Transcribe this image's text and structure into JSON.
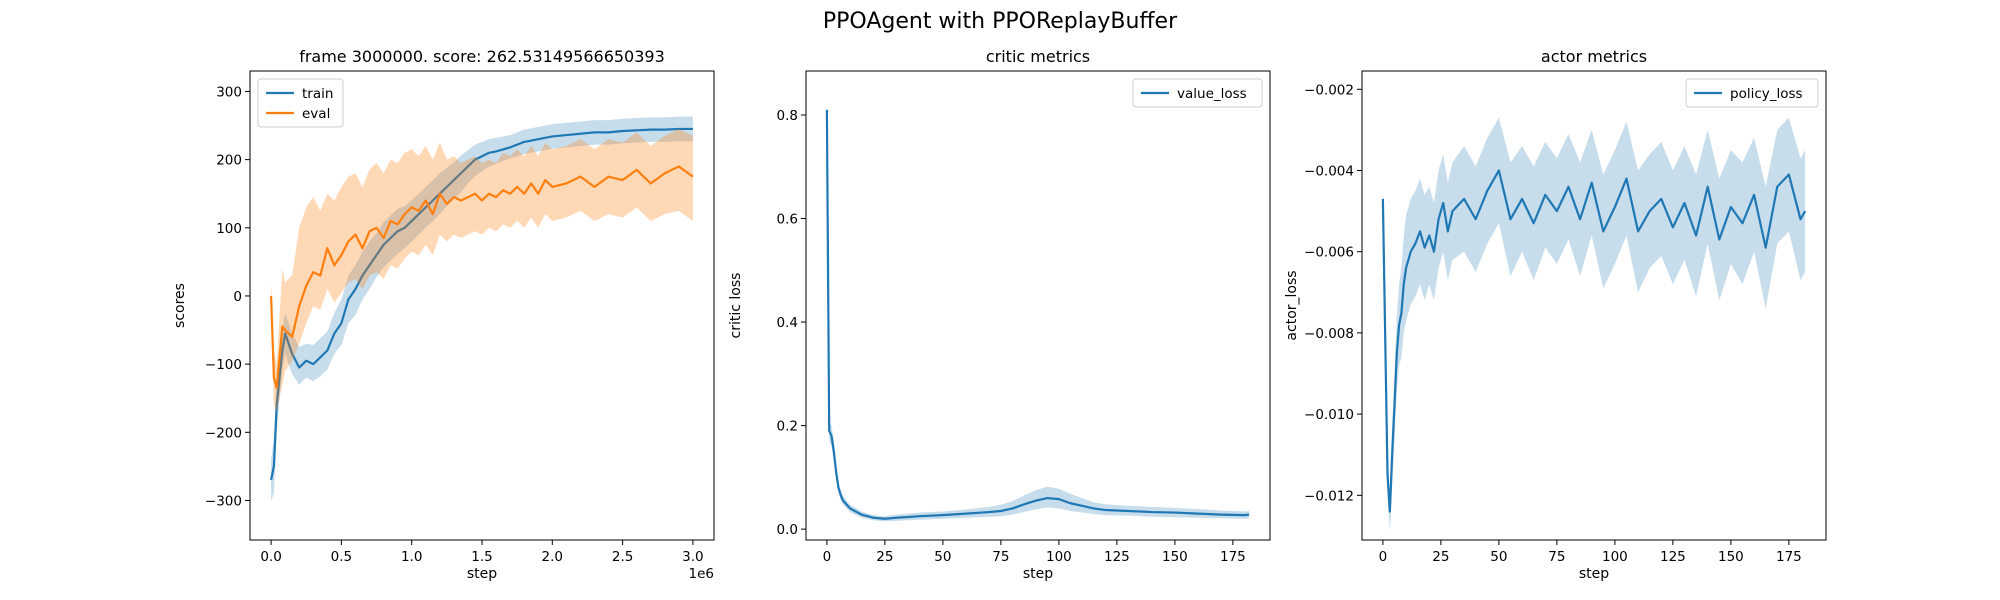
{
  "figure": {
    "suptitle": "PPOAgent with PPOReplayBuffer"
  },
  "chart_data": [
    {
      "type": "line",
      "title": "frame 3000000. score: 262.53149566650393",
      "xlabel": "step",
      "ylabel": "scores",
      "x_offset_text": "1e6",
      "xlim": [
        -150000,
        3150000
      ],
      "ylim": [
        -358,
        330
      ],
      "xticks": [
        0,
        500000,
        1000000,
        1500000,
        2000000,
        2500000,
        3000000
      ],
      "xtick_labels": [
        "0.0",
        "0.5",
        "1.0",
        "1.5",
        "2.0",
        "2.5",
        "3.0"
      ],
      "yticks": [
        -300,
        -200,
        -100,
        0,
        100,
        200,
        300
      ],
      "ytick_labels": [
        "−300",
        "−200",
        "−100",
        "0",
        "100",
        "200",
        "300"
      ],
      "legend": "top-left",
      "series": [
        {
          "name": "train",
          "color": "#1f77b4",
          "band_opacity": 0.25,
          "x": [
            0,
            20000,
            40000,
            60000,
            80000,
            100000,
            150000,
            200000,
            250000,
            300000,
            350000,
            400000,
            450000,
            500000,
            550000,
            600000,
            650000,
            700000,
            750000,
            800000,
            850000,
            900000,
            950000,
            1000000,
            1050000,
            1100000,
            1150000,
            1200000,
            1250000,
            1300000,
            1350000,
            1400000,
            1450000,
            1500000,
            1550000,
            1600000,
            1650000,
            1700000,
            1750000,
            1800000,
            1850000,
            1900000,
            1950000,
            2000000,
            2100000,
            2200000,
            2300000,
            2400000,
            2500000,
            2600000,
            2700000,
            2800000,
            2900000,
            3000000
          ],
          "values": [
            -270,
            -250,
            -160,
            -120,
            -80,
            -55,
            -85,
            -105,
            -95,
            -100,
            -90,
            -80,
            -55,
            -40,
            -5,
            10,
            30,
            45,
            60,
            75,
            85,
            95,
            100,
            110,
            120,
            130,
            140,
            150,
            160,
            170,
            180,
            190,
            200,
            205,
            210,
            212,
            215,
            218,
            222,
            226,
            228,
            230,
            232,
            234,
            236,
            238,
            240,
            240,
            242,
            243,
            244,
            244,
            245,
            245
          ],
          "lower": [
            -300,
            -290,
            -200,
            -150,
            -110,
            -85,
            -115,
            -130,
            -120,
            -125,
            -118,
            -108,
            -85,
            -72,
            -40,
            -28,
            -5,
            10,
            28,
            42,
            52,
            62,
            70,
            80,
            90,
            100,
            110,
            120,
            132,
            142,
            152,
            165,
            176,
            183,
            190,
            194,
            198,
            202,
            205,
            208,
            210,
            212,
            214,
            216,
            218,
            220,
            222,
            222,
            224,
            225,
            226,
            226,
            227,
            227
          ],
          "upper": [
            -240,
            -210,
            -120,
            -90,
            -50,
            -25,
            -55,
            -75,
            -70,
            -72,
            -62,
            -52,
            -25,
            -5,
            30,
            45,
            65,
            80,
            92,
            108,
            118,
            128,
            132,
            140,
            150,
            160,
            170,
            180,
            188,
            196,
            206,
            214,
            222,
            226,
            230,
            232,
            234,
            236,
            240,
            244,
            246,
            248,
            250,
            252,
            254,
            256,
            258,
            258,
            260,
            261,
            262,
            262,
            263,
            263
          ]
        },
        {
          "name": "eval",
          "color": "#ff7f0e",
          "band_opacity": 0.3,
          "x": [
            0,
            20000,
            40000,
            60000,
            80000,
            100000,
            150000,
            200000,
            250000,
            300000,
            350000,
            400000,
            450000,
            500000,
            550000,
            600000,
            650000,
            700000,
            750000,
            800000,
            850000,
            900000,
            950000,
            1000000,
            1050000,
            1100000,
            1150000,
            1200000,
            1250000,
            1300000,
            1350000,
            1400000,
            1450000,
            1500000,
            1550000,
            1600000,
            1650000,
            1700000,
            1750000,
            1800000,
            1850000,
            1900000,
            1950000,
            2000000,
            2100000,
            2200000,
            2300000,
            2400000,
            2500000,
            2600000,
            2700000,
            2800000,
            2900000,
            3000000
          ],
          "values": [
            0,
            -120,
            -135,
            -90,
            -45,
            -50,
            -60,
            -15,
            15,
            35,
            30,
            70,
            45,
            60,
            80,
            90,
            70,
            95,
            100,
            85,
            110,
            105,
            120,
            130,
            125,
            140,
            120,
            150,
            135,
            145,
            140,
            145,
            150,
            140,
            150,
            145,
            155,
            150,
            160,
            150,
            165,
            150,
            170,
            160,
            165,
            175,
            160,
            175,
            170,
            185,
            165,
            180,
            190,
            175
          ],
          "lower": [
            -20,
            -160,
            -170,
            -150,
            -130,
            -110,
            -95,
            -70,
            -40,
            -15,
            -20,
            10,
            -10,
            5,
            20,
            25,
            10,
            30,
            35,
            25,
            45,
            40,
            55,
            65,
            60,
            75,
            60,
            90,
            80,
            90,
            85,
            90,
            95,
            90,
            100,
            95,
            105,
            100,
            110,
            100,
            115,
            100,
            120,
            110,
            115,
            125,
            110,
            120,
            115,
            130,
            110,
            120,
            125,
            110
          ],
          "upper": [
            20,
            -80,
            -100,
            -30,
            40,
            20,
            30,
            100,
            130,
            145,
            125,
            150,
            140,
            160,
            175,
            180,
            160,
            185,
            195,
            180,
            200,
            195,
            210,
            215,
            205,
            220,
            200,
            225,
            200,
            205,
            195,
            200,
            205,
            195,
            200,
            195,
            210,
            205,
            215,
            205,
            220,
            205,
            225,
            215,
            220,
            230,
            215,
            230,
            225,
            240,
            220,
            235,
            245,
            235
          ]
        }
      ]
    },
    {
      "type": "line",
      "title": "critic metrics",
      "xlabel": "step",
      "ylabel": "critic loss",
      "xlim": [
        -9,
        191
      ],
      "ylim": [
        -0.021,
        0.885
      ],
      "xticks": [
        0,
        25,
        50,
        75,
        100,
        125,
        150,
        175
      ],
      "xtick_labels": [
        "0",
        "25",
        "50",
        "75",
        "100",
        "125",
        "150",
        "175"
      ],
      "yticks": [
        0.0,
        0.2,
        0.4,
        0.6,
        0.8
      ],
      "ytick_labels": [
        "0.0",
        "0.2",
        "0.4",
        "0.6",
        "0.8"
      ],
      "legend": "top-right",
      "series": [
        {
          "name": "value_loss",
          "color": "#1f77b4",
          "band_opacity": 0.25,
          "x": [
            0,
            1,
            2,
            3,
            4,
            5,
            6,
            7,
            8,
            10,
            12,
            15,
            20,
            25,
            30,
            40,
            50,
            60,
            70,
            75,
            80,
            85,
            90,
            95,
            100,
            105,
            110,
            115,
            120,
            130,
            140,
            150,
            160,
            170,
            180,
            182
          ],
          "values": [
            0.81,
            0.19,
            0.18,
            0.15,
            0.11,
            0.08,
            0.065,
            0.055,
            0.05,
            0.04,
            0.035,
            0.028,
            0.022,
            0.02,
            0.022,
            0.025,
            0.027,
            0.03,
            0.033,
            0.035,
            0.04,
            0.048,
            0.055,
            0.06,
            0.058,
            0.05,
            0.045,
            0.04,
            0.037,
            0.035,
            0.033,
            0.032,
            0.03,
            0.028,
            0.027,
            0.028
          ],
          "lower": [
            0.78,
            0.17,
            0.16,
            0.13,
            0.095,
            0.07,
            0.055,
            0.047,
            0.042,
            0.033,
            0.028,
            0.022,
            0.017,
            0.015,
            0.016,
            0.018,
            0.02,
            0.022,
            0.024,
            0.025,
            0.028,
            0.033,
            0.038,
            0.042,
            0.04,
            0.035,
            0.032,
            0.029,
            0.027,
            0.026,
            0.024,
            0.023,
            0.022,
            0.021,
            0.02,
            0.021
          ],
          "upper": [
            0.84,
            0.21,
            0.2,
            0.17,
            0.125,
            0.09,
            0.075,
            0.064,
            0.058,
            0.047,
            0.042,
            0.034,
            0.027,
            0.025,
            0.028,
            0.032,
            0.034,
            0.038,
            0.043,
            0.047,
            0.054,
            0.065,
            0.075,
            0.082,
            0.078,
            0.068,
            0.06,
            0.052,
            0.048,
            0.045,
            0.043,
            0.041,
            0.039,
            0.036,
            0.034,
            0.035
          ]
        }
      ]
    },
    {
      "type": "line",
      "title": "actor metrics",
      "xlabel": "step",
      "ylabel": "actor_loss",
      "xlim": [
        -9,
        191
      ],
      "ylim": [
        -0.0131,
        -0.00155
      ],
      "xticks": [
        0,
        25,
        50,
        75,
        100,
        125,
        150,
        175
      ],
      "xtick_labels": [
        "0",
        "25",
        "50",
        "75",
        "100",
        "125",
        "150",
        "175"
      ],
      "yticks": [
        -0.012,
        -0.01,
        -0.008,
        -0.006,
        -0.004,
        -0.002
      ],
      "ytick_labels": [
        "−0.012",
        "−0.010",
        "−0.008",
        "−0.006",
        "−0.004",
        "−0.002"
      ],
      "legend": "top-right",
      "series": [
        {
          "name": "policy_loss",
          "color": "#1f77b4",
          "band_opacity": 0.25,
          "x": [
            0,
            2,
            3,
            4,
            5,
            6,
            7,
            8,
            9,
            10,
            12,
            14,
            16,
            18,
            20,
            22,
            24,
            26,
            28,
            30,
            35,
            40,
            45,
            50,
            55,
            60,
            65,
            70,
            75,
            80,
            85,
            90,
            95,
            100,
            105,
            110,
            115,
            120,
            125,
            130,
            135,
            140,
            145,
            150,
            155,
            160,
            165,
            170,
            175,
            180,
            182
          ],
          "values": [
            -0.0047,
            -0.0115,
            -0.0124,
            -0.011,
            -0.0098,
            -0.0085,
            -0.0078,
            -0.0075,
            -0.0068,
            -0.0064,
            -0.006,
            -0.0058,
            -0.0055,
            -0.0059,
            -0.0056,
            -0.006,
            -0.0052,
            -0.0048,
            -0.0055,
            -0.005,
            -0.0047,
            -0.0052,
            -0.0045,
            -0.004,
            -0.0052,
            -0.0047,
            -0.0053,
            -0.0046,
            -0.005,
            -0.0044,
            -0.0052,
            -0.0043,
            -0.0055,
            -0.0049,
            -0.0042,
            -0.0055,
            -0.005,
            -0.0047,
            -0.0054,
            -0.0048,
            -0.0056,
            -0.0044,
            -0.0057,
            -0.0049,
            -0.0053,
            -0.0046,
            -0.0059,
            -0.0044,
            -0.0041,
            -0.0052,
            -0.005
          ],
          "lower": [
            -0.005,
            -0.012,
            -0.0129,
            -0.0118,
            -0.0106,
            -0.0094,
            -0.0088,
            -0.0086,
            -0.008,
            -0.0077,
            -0.0073,
            -0.0071,
            -0.0068,
            -0.0072,
            -0.0068,
            -0.0072,
            -0.0064,
            -0.006,
            -0.0067,
            -0.0062,
            -0.006,
            -0.0065,
            -0.0058,
            -0.0053,
            -0.0066,
            -0.006,
            -0.0067,
            -0.0059,
            -0.0063,
            -0.0057,
            -0.0066,
            -0.0056,
            -0.0069,
            -0.0063,
            -0.0056,
            -0.007,
            -0.0064,
            -0.0061,
            -0.0068,
            -0.0062,
            -0.0071,
            -0.0058,
            -0.0072,
            -0.0063,
            -0.0068,
            -0.006,
            -0.0074,
            -0.0058,
            -0.0055,
            -0.0067,
            -0.0065
          ],
          "upper": [
            -0.0044,
            -0.011,
            -0.0119,
            -0.0102,
            -0.009,
            -0.0076,
            -0.0068,
            -0.0064,
            -0.0056,
            -0.0051,
            -0.0047,
            -0.0045,
            -0.0042,
            -0.0046,
            -0.0044,
            -0.0048,
            -0.004,
            -0.0036,
            -0.0043,
            -0.0038,
            -0.0034,
            -0.0039,
            -0.0032,
            -0.0027,
            -0.0038,
            -0.0034,
            -0.0039,
            -0.0033,
            -0.0037,
            -0.0031,
            -0.0038,
            -0.003,
            -0.0041,
            -0.0035,
            -0.0028,
            -0.004,
            -0.0036,
            -0.0033,
            -0.004,
            -0.0034,
            -0.0041,
            -0.003,
            -0.0042,
            -0.0035,
            -0.0038,
            -0.0032,
            -0.0044,
            -0.003,
            -0.0027,
            -0.0037,
            -0.0035
          ]
        }
      ]
    }
  ]
}
